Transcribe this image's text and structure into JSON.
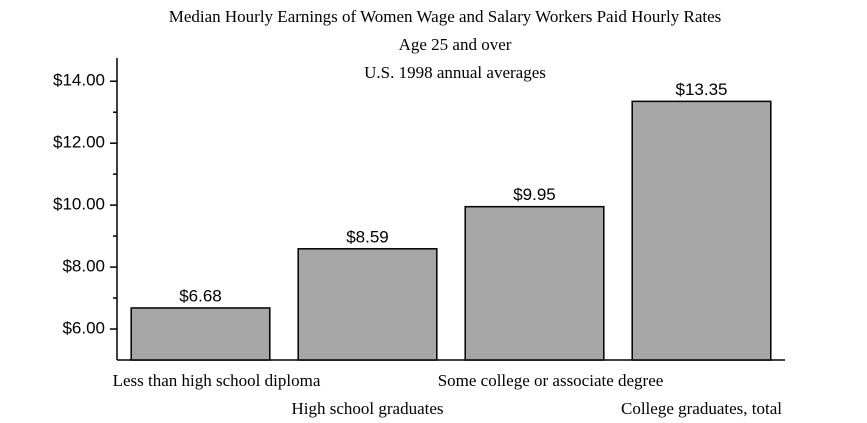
{
  "chart_data": {
    "type": "bar",
    "title": "Median Hourly Earnings of Women Wage and Salary Workers Paid Hourly Rates",
    "subtitle": [
      "Age 25 and over",
      "U.S. 1998 annual averages"
    ],
    "categories": [
      "Less than high school diploma",
      "High school graduates",
      "Some college or associate degree",
      "College graduates, total"
    ],
    "values": [
      6.68,
      8.59,
      9.95,
      13.35
    ],
    "value_labels": [
      "$6.68",
      "$8.59",
      "$9.95",
      "$13.35"
    ],
    "color": "#a6a6a6",
    "ylim": [
      5,
      14.75
    ],
    "yticks": [
      {
        "value": 6,
        "label": "$6.00"
      },
      {
        "value": 8,
        "label": "$8.00"
      },
      {
        "value": 10,
        "label": "$10.00"
      },
      {
        "value": 12,
        "label": "$12.00"
      },
      {
        "value": 14,
        "label": "$14.00"
      }
    ],
    "minor_yticks": [
      7,
      9,
      11,
      13
    ],
    "grid": false
  }
}
